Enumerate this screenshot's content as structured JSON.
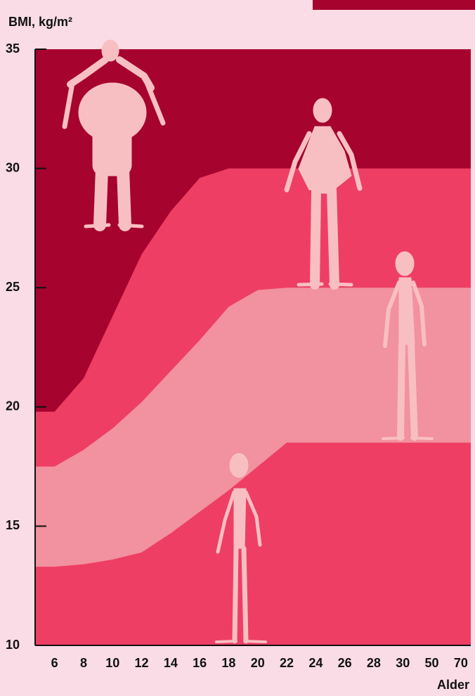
{
  "chart_data": {
    "type": "area",
    "y_label": "BMI, kg/m²",
    "x_label": "Alder",
    "categories": [
      "6",
      "8",
      "10",
      "12",
      "14",
      "16",
      "18",
      "20",
      "22",
      "24",
      "26",
      "28",
      "30",
      "50",
      "70"
    ],
    "top_color": "#a6032f",
    "series": [
      {
        "color": "#ee3e64",
        "values": [
          19.8,
          21.2,
          23.8,
          26.4,
          28.2,
          29.6,
          30,
          30,
          30,
          30,
          30,
          30,
          30,
          30,
          30
        ]
      },
      {
        "color": "#f2919f",
        "values": [
          17.5,
          18.2,
          19.1,
          20.2,
          21.5,
          22.8,
          24.2,
          24.9,
          25,
          25,
          25,
          25,
          25,
          25,
          25
        ]
      },
      {
        "color": "#ee3e64",
        "values": [
          13.3,
          13.4,
          13.6,
          13.9,
          14.7,
          15.6,
          16.5,
          17.5,
          18.5,
          18.5,
          18.5,
          18.5,
          18.5,
          18.5,
          18.5
        ]
      }
    ],
    "ylim": [
      10,
      35
    ],
    "yticks": [
      10,
      15,
      20,
      25,
      30,
      35
    ]
  }
}
